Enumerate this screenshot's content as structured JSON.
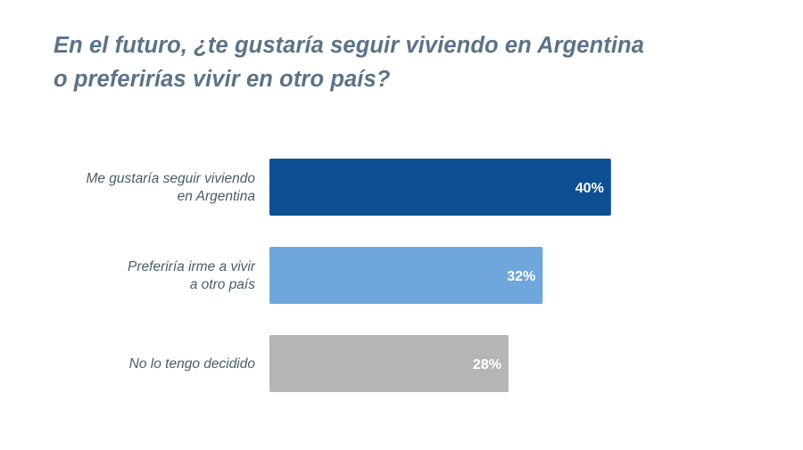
{
  "chart_data": {
    "type": "bar",
    "orientation": "horizontal",
    "title_lines": [
      "En el futuro, ¿te gustaría seguir viviendo en Argentina",
      "o preferirías vivir en otro país?"
    ],
    "categories": [
      [
        "Me gustaría seguir viviendo",
        "en Argentina"
      ],
      [
        "Preferiría irme a vivir",
        "a otro país"
      ],
      [
        "No lo tengo decidido"
      ]
    ],
    "values": [
      40,
      32,
      28
    ],
    "value_labels": [
      "40%",
      "32%",
      "28%"
    ],
    "colors": [
      "#0e4f93",
      "#6fa6dc",
      "#b5b5b5"
    ],
    "xlim": [
      0,
      100
    ],
    "grid": false,
    "legend": "none"
  }
}
